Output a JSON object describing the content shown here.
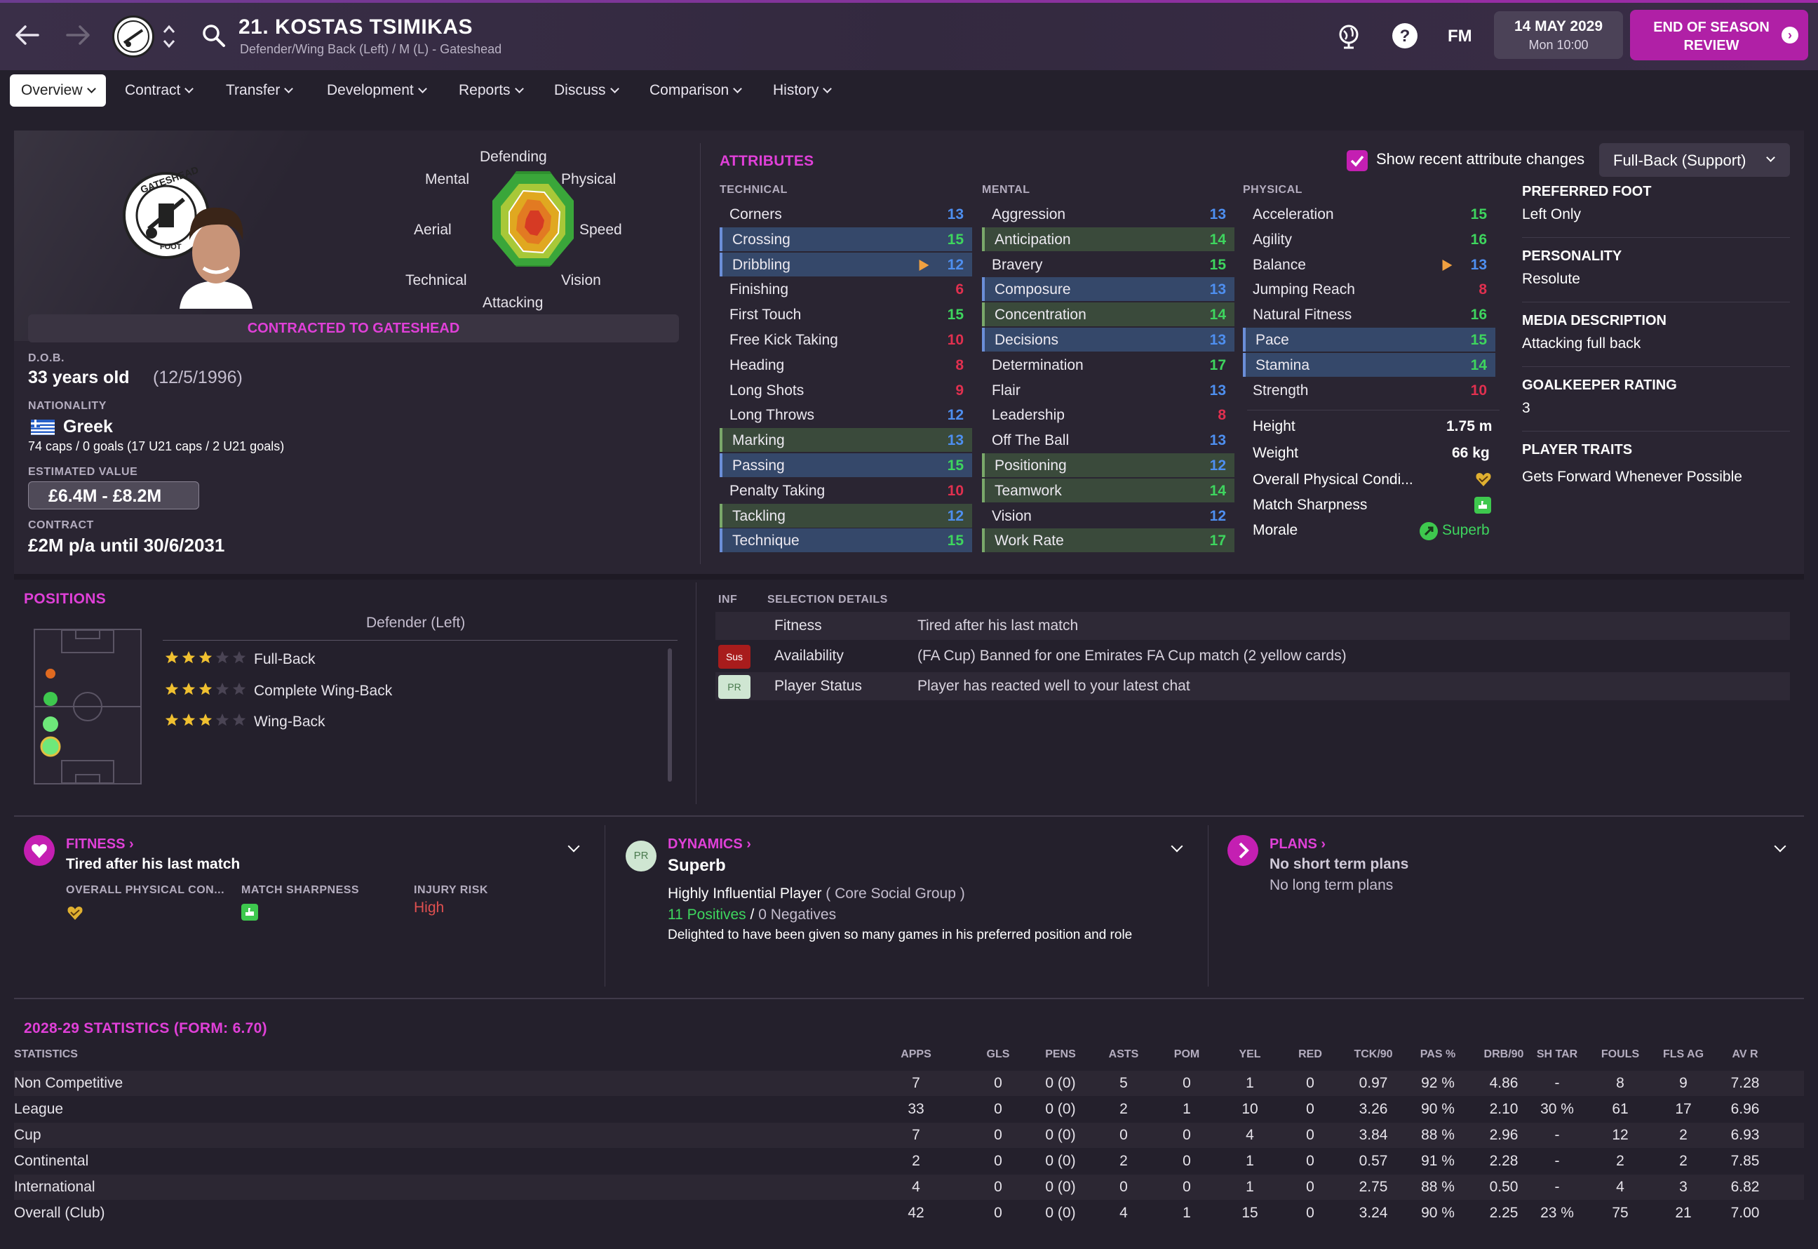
{
  "header": {
    "name": "21. KOSTAS TSIMIKAS",
    "subtitle": "Defender/Wing Back (Left) / M (L) - Gateshead",
    "fm": "FM",
    "date": "14 MAY 2029",
    "time": "Mon 10:00",
    "eos": "END OF SEASON REVIEW"
  },
  "tabs": [
    "Overview",
    "Contract",
    "Transfer",
    "Development",
    "Reports",
    "Discuss",
    "Comparison",
    "History"
  ],
  "profile": {
    "contracted": "CONTRACTED TO GATESHEAD",
    "dob_label": "D.O.B.",
    "age": "33 years old",
    "dob": "(12/5/1996)",
    "nat_label": "NATIONALITY",
    "nationality": "Greek",
    "caps": "74 caps / 0 goals (17 U21 caps / 2 U21 goals)",
    "value_label": "ESTIMATED VALUE",
    "value": "£6.4M - £8.2M",
    "contract_label": "CONTRACT",
    "contract": "£2M p/a until 30/6/2031",
    "crest_text_top": "GATESHEAD",
    "crest_text_bottom": "FOOT"
  },
  "radar": {
    "labels": [
      "Defending",
      "Physical",
      "Speed",
      "Vision",
      "Attacking",
      "Technical",
      "Aerial",
      "Mental"
    ]
  },
  "attributes": {
    "title": "ATTRIBUTES",
    "show_changes": "Show recent attribute changes",
    "role": "Full-Back (Support)",
    "technical_label": "TECHNICAL",
    "mental_label": "MENTAL",
    "physical_label": "PHYSICAL",
    "technical": [
      {
        "n": "Corners",
        "v": "13",
        "c": "blue",
        "h": ""
      },
      {
        "n": "Crossing",
        "v": "15",
        "c": "green",
        "h": "blue"
      },
      {
        "n": "Dribbling",
        "v": "12",
        "c": "blue",
        "h": "blue",
        "up": true
      },
      {
        "n": "Finishing",
        "v": "6",
        "c": "red",
        "h": ""
      },
      {
        "n": "First Touch",
        "v": "15",
        "c": "green",
        "h": ""
      },
      {
        "n": "Free Kick Taking",
        "v": "10",
        "c": "red",
        "h": ""
      },
      {
        "n": "Heading",
        "v": "8",
        "c": "red",
        "h": ""
      },
      {
        "n": "Long Shots",
        "v": "9",
        "c": "red",
        "h": ""
      },
      {
        "n": "Long Throws",
        "v": "12",
        "c": "blue",
        "h": ""
      },
      {
        "n": "Marking",
        "v": "13",
        "c": "blue",
        "h": "green"
      },
      {
        "n": "Passing",
        "v": "15",
        "c": "green",
        "h": "blue"
      },
      {
        "n": "Penalty Taking",
        "v": "10",
        "c": "red",
        "h": ""
      },
      {
        "n": "Tackling",
        "v": "12",
        "c": "blue",
        "h": "green"
      },
      {
        "n": "Technique",
        "v": "15",
        "c": "green",
        "h": "blue"
      }
    ],
    "mental": [
      {
        "n": "Aggression",
        "v": "13",
        "c": "blue",
        "h": ""
      },
      {
        "n": "Anticipation",
        "v": "14",
        "c": "green",
        "h": "green"
      },
      {
        "n": "Bravery",
        "v": "15",
        "c": "green",
        "h": ""
      },
      {
        "n": "Composure",
        "v": "13",
        "c": "blue",
        "h": "blue"
      },
      {
        "n": "Concentration",
        "v": "14",
        "c": "green",
        "h": "green"
      },
      {
        "n": "Decisions",
        "v": "13",
        "c": "blue",
        "h": "blue"
      },
      {
        "n": "Determination",
        "v": "17",
        "c": "green",
        "h": ""
      },
      {
        "n": "Flair",
        "v": "13",
        "c": "blue",
        "h": ""
      },
      {
        "n": "Leadership",
        "v": "8",
        "c": "red",
        "h": ""
      },
      {
        "n": "Off The Ball",
        "v": "13",
        "c": "blue",
        "h": ""
      },
      {
        "n": "Positioning",
        "v": "12",
        "c": "blue",
        "h": "green"
      },
      {
        "n": "Teamwork",
        "v": "14",
        "c": "green",
        "h": "green"
      },
      {
        "n": "Vision",
        "v": "12",
        "c": "blue",
        "h": ""
      },
      {
        "n": "Work Rate",
        "v": "17",
        "c": "green",
        "h": "green"
      }
    ],
    "physical": [
      {
        "n": "Acceleration",
        "v": "15",
        "c": "green",
        "h": ""
      },
      {
        "n": "Agility",
        "v": "16",
        "c": "green",
        "h": ""
      },
      {
        "n": "Balance",
        "v": "13",
        "c": "blue",
        "h": "",
        "up": true
      },
      {
        "n": "Jumping Reach",
        "v": "8",
        "c": "red",
        "h": ""
      },
      {
        "n": "Natural Fitness",
        "v": "16",
        "c": "green",
        "h": ""
      },
      {
        "n": "Pace",
        "v": "15",
        "c": "green",
        "h": "blue"
      },
      {
        "n": "Stamina",
        "v": "14",
        "c": "green",
        "h": "blue"
      },
      {
        "n": "Strength",
        "v": "10",
        "c": "red",
        "h": ""
      }
    ],
    "height_label": "Height",
    "height": "1.75 m",
    "weight_label": "Weight",
    "weight": "66 kg",
    "opc_label": "Overall Physical Condi...",
    "ms_label": "Match Sharpness",
    "morale_label": "Morale",
    "morale": "Superb"
  },
  "info": {
    "pf_label": "PREFERRED FOOT",
    "pf": "Left Only",
    "pers_label": "PERSONALITY",
    "pers": "Resolute",
    "media_label": "MEDIA DESCRIPTION",
    "media": "Attacking full back",
    "gk_label": "GOALKEEPER RATING",
    "gk": "3",
    "traits_label": "PLAYER TRAITS",
    "traits": "Gets Forward Whenever Possible"
  },
  "positions": {
    "title": "POSITIONS",
    "heading": "Defender (Left)",
    "roles": [
      "Full-Back",
      "Complete Wing-Back",
      "Wing-Back"
    ],
    "stars": [
      3,
      3,
      3
    ]
  },
  "selection": {
    "inf": "INF",
    "head": "SELECTION DETAILS",
    "rows": [
      {
        "badge": "",
        "k": "Fitness",
        "v": "Tired after his last match"
      },
      {
        "badge": "Sus",
        "k": "Availability",
        "v": "(FA Cup) Banned for one Emirates FA Cup match (2 yellow cards)"
      },
      {
        "badge": "PR",
        "k": "Player Status",
        "v": "Player has reacted well to your latest chat"
      }
    ]
  },
  "fitness": {
    "title": "FITNESS",
    "status": "Tired after his last match",
    "opc": "OVERALL PHYSICAL CON...",
    "ms": "MATCH SHARPNESS",
    "ir": "INJURY RISK",
    "ir_val": "High"
  },
  "dynamics": {
    "title": "DYNAMICS",
    "badge": "PR",
    "status": "Superb",
    "influence": "Highly Influential Player",
    "group": "( Core Social Group )",
    "positives": "11 Positives",
    "slash": "/",
    "negatives": "0 Negatives",
    "note": "Delighted to have been given so many games in his preferred position and role"
  },
  "plans": {
    "title": "PLANS",
    "short": "No short term plans",
    "long": "No long term plans"
  },
  "stats": {
    "title": "2028-29 STATISTICS (FORM: 6.70)",
    "headers": [
      "STATISTICS",
      "APPS",
      "GLS",
      "PENS",
      "ASTS",
      "POM",
      "YEL",
      "RED",
      "TCK/90",
      "PAS %",
      "DRB/90",
      "SH TAR",
      "FOULS",
      "FLS AG",
      "AV R"
    ],
    "rows": [
      [
        "Non Competitive",
        "7",
        "0",
        "0 (0)",
        "5",
        "0",
        "1",
        "0",
        "0.97",
        "92 %",
        "4.86",
        "-",
        "8",
        "9",
        "7.28"
      ],
      [
        "League",
        "33",
        "0",
        "0 (0)",
        "2",
        "1",
        "10",
        "0",
        "3.26",
        "90 %",
        "2.10",
        "30 %",
        "61",
        "17",
        "6.96"
      ],
      [
        "Cup",
        "7",
        "0",
        "0 (0)",
        "0",
        "0",
        "4",
        "0",
        "3.84",
        "88 %",
        "2.96",
        "-",
        "12",
        "2",
        "6.93"
      ],
      [
        "Continental",
        "2",
        "0",
        "0 (0)",
        "2",
        "0",
        "1",
        "0",
        "0.57",
        "91 %",
        "2.28",
        "-",
        "2",
        "2",
        "7.85"
      ],
      [
        "International",
        "4",
        "0",
        "0 (0)",
        "0",
        "0",
        "1",
        "0",
        "2.75",
        "88 %",
        "0.50",
        "-",
        "4",
        "3",
        "6.82"
      ],
      [
        "Overall (Club)",
        "42",
        "0",
        "0 (0)",
        "4",
        "1",
        "15",
        "0",
        "3.24",
        "90 %",
        "2.25",
        "23 %",
        "75",
        "21",
        "7.00"
      ]
    ]
  }
}
